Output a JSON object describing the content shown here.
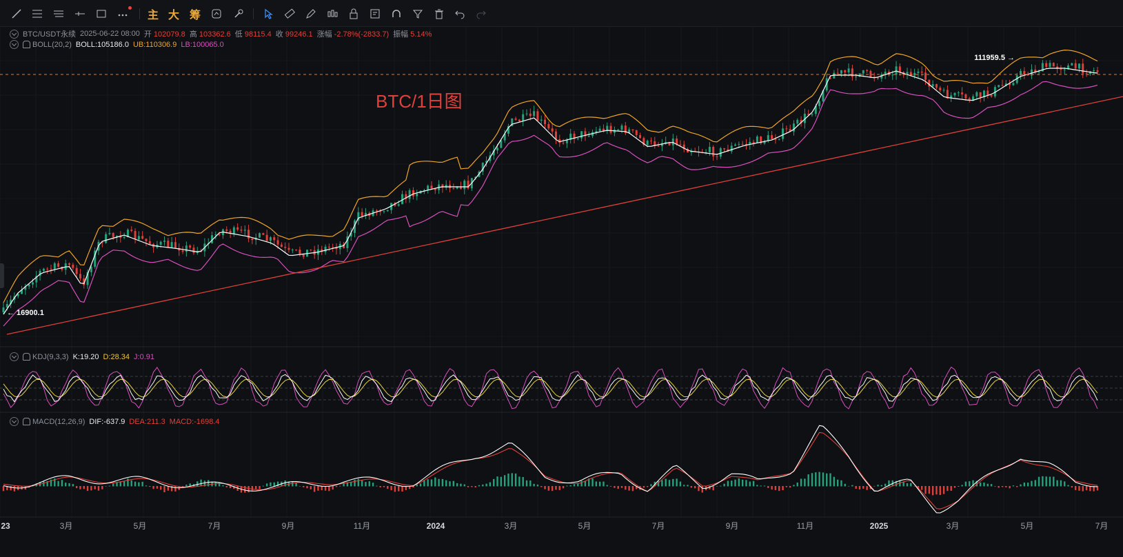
{
  "toolbar": {
    "tools": [
      "trend-line-icon",
      "horizontal-lines-icon",
      "parallel-lines-icon",
      "ray-icon",
      "rectangle-icon",
      "more-icon"
    ],
    "text_buttons": [
      "主",
      "大",
      "筹"
    ],
    "right_tools": [
      "indicator-toggle-icon",
      "settings-icon",
      "cursor-icon",
      "measure-icon",
      "pen-icon",
      "candle-type-icon",
      "lock-icon",
      "note-icon",
      "magnet-icon",
      "filter-icon",
      "delete-icon",
      "undo-icon",
      "redo-icon"
    ]
  },
  "legend": {
    "symbol": "BTC/USDT永续",
    "datetime": "2025-06-22 08:00",
    "open_label": "开",
    "open": "102079.8",
    "high_label": "高",
    "high": "103362.6",
    "low_label": "低",
    "low": "98115.4",
    "close_label": "收",
    "close": "99246.1",
    "change_label": "涨幅",
    "change": "-2.78%(-2833.7)",
    "amp_label": "振幅",
    "amp": "5.14%"
  },
  "boll": {
    "name": "BOLL(20,2)",
    "mid": "BOLL:105186.0",
    "ub": "UB:110306.9",
    "lb": "LB:100065.0"
  },
  "kdj": {
    "name": "KDJ(9,3,3)",
    "k": "K:19.20",
    "d": "D:28.34",
    "j": "J:0.91"
  },
  "macd": {
    "name": "MACD(12,26,9)",
    "dif": "DIF:-637.9",
    "dea": "DEA:211.3",
    "macd": "MACD:-1698.4"
  },
  "annotation": "BTC/1日图",
  "price_marks": {
    "high": "111959.5",
    "low": "16900.1"
  },
  "x_axis": [
    "23",
    "3月",
    "5月",
    "7月",
    "9月",
    "11月",
    "2024",
    "3月",
    "5月",
    "7月",
    "9月",
    "11月",
    "2025",
    "3月",
    "5月",
    "7月"
  ],
  "colors": {
    "up": "#26a17b",
    "down": "#e0403a",
    "mid": "#ffffff",
    "ub": "#f1a526",
    "lb": "#d94fc0",
    "trend": "#e0403a",
    "kdj_d": "#e8d640",
    "kdj_j": "#d94fc0"
  }
}
